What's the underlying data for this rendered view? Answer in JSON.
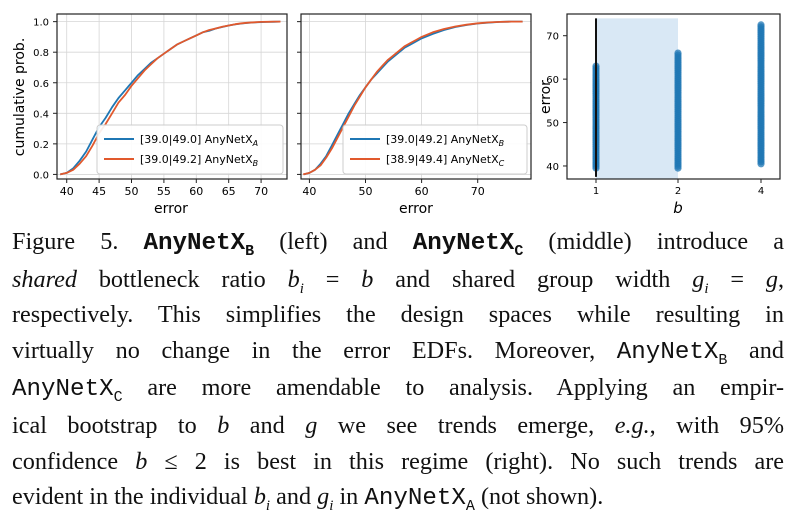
{
  "colors": {
    "blue": "#1f77b4",
    "orange": "#e1592d",
    "band": "#d9e8f5",
    "frame": "#222222",
    "grid": "#d6d6d6"
  },
  "chart_data": [
    {
      "type": "line",
      "panel": "left",
      "xlabel": "error",
      "ylabel": "cumulative prob.",
      "xlim": [
        38.5,
        74
      ],
      "ylim": [
        -0.03,
        1.05
      ],
      "xticks": [
        "40",
        "45",
        "50",
        "55",
        "60",
        "65",
        "70"
      ],
      "yticks": [
        "0.0",
        "0.2",
        "0.4",
        "0.6",
        "0.8",
        "1.0"
      ],
      "grid": true,
      "legend_position": "lower-right",
      "series": [
        {
          "name": "[39.0|49.0] AnyNetX",
          "name_sub": "A",
          "color": "blue",
          "x": [
            39.0,
            40.0,
            41.0,
            42.0,
            43.0,
            44.0,
            45.0,
            46.0,
            47.0,
            48.0,
            49.0,
            50.0,
            51.0,
            52.0,
            53.0,
            54.0,
            55.0,
            56.0,
            57.0,
            58.0,
            59.0,
            60.0,
            61.0,
            62.0,
            63.0,
            64.0,
            65.0,
            66.0,
            67.0,
            68.0,
            69.0,
            70.0,
            71.0,
            72.0,
            73.0
          ],
          "y": [
            0.0,
            0.01,
            0.04,
            0.09,
            0.15,
            0.23,
            0.31,
            0.37,
            0.44,
            0.5,
            0.55,
            0.6,
            0.65,
            0.69,
            0.73,
            0.76,
            0.79,
            0.82,
            0.85,
            0.87,
            0.89,
            0.91,
            0.93,
            0.94,
            0.955,
            0.965,
            0.975,
            0.982,
            0.988,
            0.992,
            0.995,
            0.997,
            0.998,
            0.999,
            1.0
          ]
        },
        {
          "name": "[39.0|49.2] AnyNetX",
          "name_sub": "B",
          "color": "orange",
          "x": [
            39.0,
            40.0,
            41.0,
            42.0,
            43.0,
            44.0,
            45.0,
            46.0,
            47.0,
            48.0,
            49.0,
            50.0,
            51.0,
            52.0,
            53.0,
            54.0,
            55.0,
            56.0,
            57.0,
            58.0,
            59.0,
            60.0,
            61.0,
            62.0,
            63.0,
            64.0,
            65.0,
            66.0,
            67.0,
            68.0,
            69.0,
            70.0,
            71.0,
            72.0,
            73.0
          ],
          "y": [
            0.0,
            0.01,
            0.03,
            0.07,
            0.12,
            0.19,
            0.27,
            0.33,
            0.4,
            0.47,
            0.52,
            0.58,
            0.63,
            0.68,
            0.72,
            0.76,
            0.79,
            0.82,
            0.85,
            0.87,
            0.89,
            0.91,
            0.93,
            0.945,
            0.955,
            0.966,
            0.975,
            0.983,
            0.989,
            0.993,
            0.996,
            0.998,
            0.999,
            1.0,
            1.0
          ]
        }
      ]
    },
    {
      "type": "line",
      "panel": "middle",
      "xlabel": "error",
      "ylabel": "",
      "xlim": [
        38.5,
        79.5
      ],
      "ylim": [
        -0.03,
        1.05
      ],
      "xticks": [
        "40",
        "50",
        "60",
        "70"
      ],
      "grid": true,
      "legend_position": "lower-right",
      "series": [
        {
          "name": "[39.0|49.2] AnyNetX",
          "name_sub": "B",
          "color": "blue",
          "x": [
            39.0,
            40.0,
            41.0,
            42.0,
            43.0,
            44.0,
            45.0,
            46.0,
            47.0,
            48.0,
            49.0,
            50.0,
            51.0,
            52.0,
            53.0,
            54.0,
            55.0,
            56.0,
            57.0,
            58.0,
            59.0,
            60.0,
            62.0,
            64.0,
            66.0,
            68.0,
            70.0,
            72.0,
            74.0,
            76.0,
            78.0
          ],
          "y": [
            0.0,
            0.01,
            0.03,
            0.07,
            0.12,
            0.19,
            0.26,
            0.33,
            0.4,
            0.46,
            0.52,
            0.57,
            0.62,
            0.66,
            0.7,
            0.74,
            0.77,
            0.8,
            0.83,
            0.85,
            0.87,
            0.89,
            0.92,
            0.945,
            0.965,
            0.978,
            0.988,
            0.994,
            0.998,
            1.0,
            1.0
          ]
        },
        {
          "name": "[38.9|49.4] AnyNetX",
          "name_sub": "C",
          "color": "orange",
          "x": [
            38.9,
            40.0,
            41.0,
            42.0,
            43.0,
            44.0,
            45.0,
            46.0,
            47.0,
            48.0,
            49.0,
            50.0,
            51.0,
            52.0,
            53.0,
            54.0,
            55.0,
            56.0,
            57.0,
            58.0,
            59.0,
            60.0,
            62.0,
            64.0,
            66.0,
            68.0,
            70.0,
            72.0,
            74.0,
            76.0,
            78.0
          ],
          "y": [
            0.0,
            0.01,
            0.03,
            0.06,
            0.11,
            0.17,
            0.24,
            0.31,
            0.38,
            0.45,
            0.51,
            0.57,
            0.62,
            0.67,
            0.71,
            0.75,
            0.78,
            0.81,
            0.84,
            0.86,
            0.88,
            0.9,
            0.93,
            0.952,
            0.968,
            0.98,
            0.989,
            0.995,
            0.998,
            1.0,
            1.0
          ]
        }
      ]
    },
    {
      "type": "scatter",
      "panel": "right",
      "xlabel": "b",
      "ylabel": "error",
      "ylim": [
        37,
        75
      ],
      "x_categories": [
        "1",
        "2",
        "4"
      ],
      "yticks": [
        "40",
        "50",
        "60",
        "70"
      ],
      "grid": false,
      "highlight_band": {
        "from": "1",
        "to": "2"
      },
      "vertical_line_at": "1",
      "points": [
        {
          "b": "1",
          "error_range": [
            39.5,
            63.0
          ]
        },
        {
          "b": "2",
          "error_range": [
            39.5,
            66.0
          ]
        },
        {
          "b": "4",
          "error_range": [
            40.5,
            72.5
          ]
        }
      ]
    }
  ],
  "caption": {
    "lead": "Figure 5. ",
    "nameB": "AnyNetX",
    "subB": "B",
    "t1": " (left) and ",
    "nameC": "AnyNetX",
    "subC": "C",
    "t2": " (middle) introduce a",
    "l2_a": "shared",
    "l2_b": " bottleneck ratio ",
    "l2_bi": "b",
    "l2_i1": "i",
    "l2_eq1": " = ",
    "l2_b2": "b",
    "l2_c": " and shared group width ",
    "l2_gi": "g",
    "l2_i2": "i",
    "l2_eq2": " = ",
    "l2_g": "g",
    "l2_end": ",",
    "l3": "respectively. This simplifies the design spaces while resulting in",
    "l4_a": "virtually no change in the error EDFs. Moreover, ",
    "l4_code": "AnyNetX",
    "l4_sub": "B",
    "l4_b": " and",
    "l5_code": "AnyNetX",
    "l5_sub": "C",
    "l5_b": " are more amendable to analysis. Applying an empir-",
    "l6_a": "ical bootstrap to ",
    "l6_b": "b",
    "l6_c": " and ",
    "l6_g": "g",
    "l6_d": " we see trends emerge, ",
    "l6_eg": "e.g.",
    "l6_e": ", with 95%",
    "l7_a": "confidence ",
    "l7_b": "b",
    "l7_c": " ≤ 2 is best in this regime (right). No such trends are",
    "l8_a": "evident in the individual ",
    "l8_b": "b",
    "l8_i1": "i",
    "l8_c": " and ",
    "l8_g": "g",
    "l8_i2": "i",
    "l8_d": " in ",
    "l8_code": "AnyNetX",
    "l8_sub": "A",
    "l8_e": " (not shown)."
  }
}
